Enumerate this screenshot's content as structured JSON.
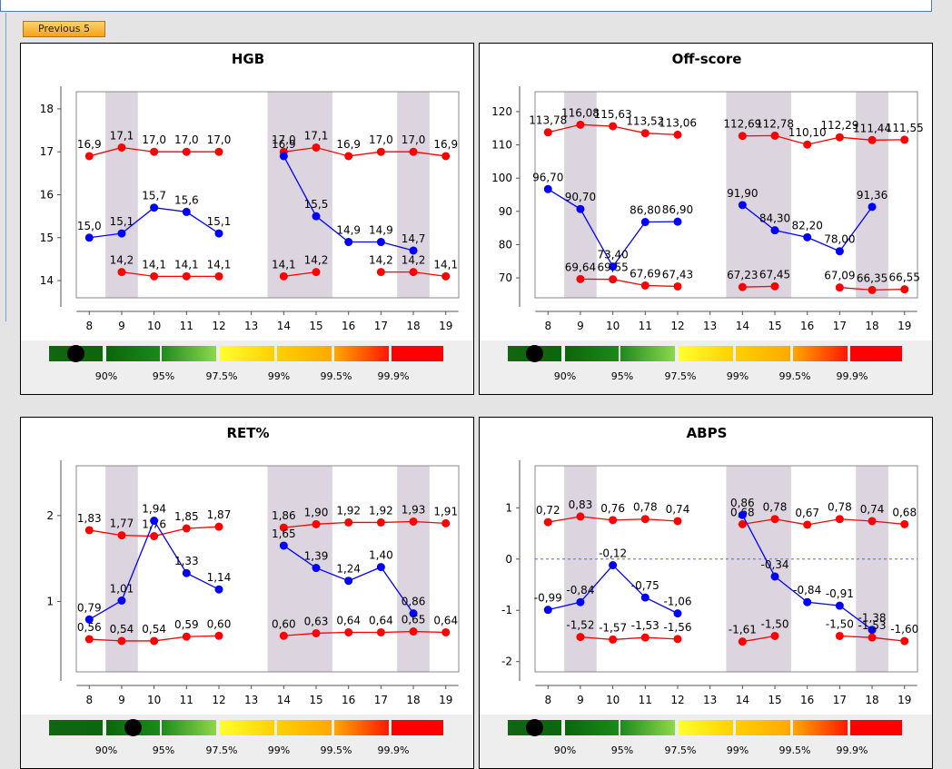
{
  "nav": {
    "previous_label": "Previous 5"
  },
  "colors": {
    "red_series": "#ff0000",
    "blue_series": "#0000ff",
    "band_shade": "#dcd4de",
    "legend_bg": "#eeeeee"
  },
  "legend": {
    "labels": [
      "90%",
      "95%",
      "97.5%",
      "99%",
      "99.5%",
      "99.9%"
    ],
    "swatches": [
      {
        "from": "#116611",
        "to": "#0c660c"
      },
      {
        "from": "#0c660c",
        "to": "#1a8a1a"
      },
      {
        "from": "#1f8a1f",
        "to": "#8fd84a"
      },
      {
        "from": "#ffff30",
        "to": "#ffd000"
      },
      {
        "from": "#ffd000",
        "to": "#ffa800"
      },
      {
        "from": "#ffa800",
        "to": "#ff1800"
      },
      {
        "from": "#ff0000",
        "to": "#ff0000"
      }
    ]
  },
  "chart_data": [
    {
      "type": "line",
      "title": "HGB",
      "x": [
        8,
        9,
        10,
        11,
        12,
        13,
        14,
        15,
        16,
        17,
        18,
        19
      ],
      "xlim": [
        7.6,
        19.4
      ],
      "ylim": [
        13.6,
        18.4
      ],
      "yticks": [
        14,
        15,
        16,
        17,
        18
      ],
      "shaded": [
        [
          8.5,
          9.5
        ],
        [
          13.5,
          15.5
        ],
        [
          17.5,
          18.5
        ]
      ],
      "marker": {
        "swatch": 0,
        "pos": 0.5
      },
      "series": [
        {
          "color": "#ff0000",
          "values": [
            16.9,
            17.1,
            17.0,
            17.0,
            17.0,
            null,
            17.0,
            17.1,
            16.9,
            17.0,
            17.0,
            16.9
          ],
          "labels": [
            "16,9",
            "17,1",
            "17,0",
            "17,0",
            "17,0",
            null,
            "17,0",
            "17,1",
            "16,9",
            "17,0",
            "17,0",
            "16,9"
          ]
        },
        {
          "color": "#0000ff",
          "values": [
            15.0,
            15.1,
            15.7,
            15.6,
            15.1,
            null,
            16.9,
            15.5,
            14.9,
            14.9,
            14.7,
            null
          ],
          "labels": [
            "15,0",
            "15,1",
            "15,7",
            "15,6",
            "15,1",
            null,
            "16,9",
            "15,5",
            "14,9",
            "14,9",
            "14,7",
            null
          ]
        },
        {
          "color": "#ff0000",
          "values": [
            null,
            14.2,
            14.1,
            14.1,
            14.1,
            null,
            14.1,
            14.2,
            null,
            14.2,
            14.2,
            14.1
          ],
          "labels": [
            null,
            "14,2",
            "14,1",
            "14,1",
            "14,1",
            null,
            "14,1",
            "14,2",
            null,
            "14,2",
            "14,2",
            "14,1"
          ]
        }
      ]
    },
    {
      "type": "line",
      "title": "Off-score",
      "x": [
        8,
        9,
        10,
        11,
        12,
        13,
        14,
        15,
        16,
        17,
        18,
        19
      ],
      "xlim": [
        7.6,
        19.4
      ],
      "ylim": [
        64,
        126
      ],
      "yticks": [
        70,
        80,
        90,
        100,
        110,
        120
      ],
      "shaded": [
        [
          8.5,
          9.5
        ],
        [
          13.5,
          15.5
        ],
        [
          17.5,
          18.5
        ]
      ],
      "marker": {
        "swatch": 0,
        "pos": 0.5
      },
      "series": [
        {
          "color": "#ff0000",
          "values": [
            113.78,
            116.08,
            115.63,
            113.52,
            113.06,
            null,
            112.69,
            112.78,
            110.1,
            112.29,
            111.44,
            111.55
          ],
          "labels": [
            "113,78",
            "116,08",
            "115,63",
            "113,52",
            "113,06",
            null,
            "112,69",
            "112,78",
            "110,10",
            "112,29",
            "111,44",
            "111,55"
          ]
        },
        {
          "color": "#0000ff",
          "values": [
            96.7,
            90.7,
            73.4,
            86.8,
            86.9,
            null,
            91.9,
            84.3,
            82.2,
            78.0,
            91.36,
            null
          ],
          "labels": [
            "96,70",
            "90,70",
            "73,40",
            "86,80",
            "86,90",
            null,
            "91,90",
            "84,30",
            "82,20",
            "78,00",
            "91,36",
            null
          ]
        },
        {
          "color": "#ff0000",
          "values": [
            null,
            69.64,
            69.55,
            67.69,
            67.43,
            null,
            67.23,
            67.45,
            null,
            67.09,
            66.35,
            66.55
          ],
          "labels": [
            null,
            "69,64",
            "69,55",
            "67,69",
            "67,43",
            null,
            "67,23",
            "67,45",
            null,
            "67,09",
            "66,35",
            "66,55"
          ]
        }
      ]
    },
    {
      "type": "line",
      "title": "RET%",
      "x": [
        8,
        9,
        10,
        11,
        12,
        13,
        14,
        15,
        16,
        17,
        18,
        19
      ],
      "xlim": [
        7.6,
        19.4
      ],
      "ylim": [
        0.18,
        2.58
      ],
      "yticks": [
        1,
        2
      ],
      "shaded": [
        [
          8.5,
          9.5
        ],
        [
          13.5,
          15.5
        ],
        [
          17.5,
          18.5
        ]
      ],
      "marker": {
        "swatch": 1,
        "pos": 0.5
      },
      "series": [
        {
          "color": "#ff0000",
          "values": [
            1.83,
            1.77,
            1.76,
            1.85,
            1.87,
            null,
            1.86,
            1.9,
            1.92,
            1.92,
            1.93,
            1.91
          ],
          "labels": [
            "1,83",
            "1,77",
            "1,76",
            "1,85",
            "1,87",
            null,
            "1,86",
            "1,90",
            "1,92",
            "1,92",
            "1,93",
            "1,91"
          ]
        },
        {
          "color": "#0000ff",
          "values": [
            0.79,
            1.01,
            1.94,
            1.33,
            1.14,
            null,
            1.65,
            1.39,
            1.24,
            1.4,
            0.86,
            null
          ],
          "labels": [
            "0,79",
            "1,01",
            "1,94",
            "1,33",
            "1,14",
            null,
            "1,65",
            "1,39",
            "1,24",
            "1,40",
            "0,86",
            null
          ]
        },
        {
          "color": "#ff0000",
          "values": [
            0.56,
            0.54,
            0.54,
            0.59,
            0.6,
            null,
            0.6,
            0.63,
            0.64,
            0.64,
            0.65,
            0.64
          ],
          "labels": [
            "0,56",
            "0,54",
            "0,54",
            "0,59",
            "0,60",
            null,
            "0,60",
            "0,63",
            "0,64",
            "0,64",
            "0,65",
            "0,64"
          ]
        }
      ]
    },
    {
      "type": "line",
      "title": "ABPS",
      "x": [
        8,
        9,
        10,
        11,
        12,
        13,
        14,
        15,
        16,
        17,
        18,
        19
      ],
      "xlim": [
        7.6,
        19.4
      ],
      "ylim": [
        -2.2,
        1.82
      ],
      "yticks": [
        -2,
        -1,
        0,
        1
      ],
      "zero_line": 0,
      "shaded": [
        [
          8.5,
          9.5
        ],
        [
          13.5,
          15.5
        ],
        [
          17.5,
          18.5
        ]
      ],
      "marker": {
        "swatch": 0,
        "pos": 0.5
      },
      "series": [
        {
          "color": "#ff0000",
          "values": [
            0.72,
            0.83,
            0.76,
            0.78,
            0.74,
            null,
            0.68,
            0.78,
            0.67,
            0.78,
            0.74,
            0.68
          ],
          "labels": [
            "0,72",
            "0,83",
            "0,76",
            "0,78",
            "0,74",
            null,
            "0,68",
            "0,78",
            "0,67",
            "0,78",
            "0,74",
            "0,68"
          ]
        },
        {
          "color": "#0000ff",
          "values": [
            -0.99,
            -0.84,
            -0.12,
            -0.75,
            -1.06,
            null,
            0.86,
            -0.34,
            -0.84,
            -0.91,
            -1.38,
            null
          ],
          "labels": [
            "-0,99",
            "-0,84",
            "-0,12",
            "-0,75",
            "-1,06",
            null,
            "0,86",
            "-0,34",
            "-0,84",
            "-0,91",
            "-1,38",
            null
          ]
        },
        {
          "color": "#ff0000",
          "values": [
            null,
            -1.52,
            -1.57,
            -1.53,
            -1.56,
            null,
            -1.61,
            -1.5,
            null,
            -1.5,
            -1.53,
            -1.6
          ],
          "labels": [
            null,
            "-1,52",
            "-1,57",
            "-1,53",
            "-1,56",
            null,
            "-1,61",
            "-1,50",
            null,
            "-1,50",
            "-1,53",
            "-1,60"
          ]
        }
      ]
    }
  ]
}
